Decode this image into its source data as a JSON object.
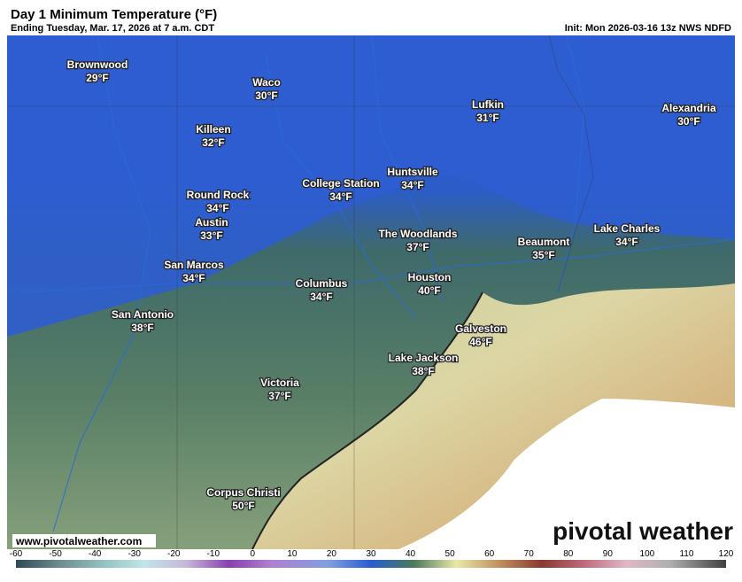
{
  "header": {
    "title": "Day 1 Minimum Temperature (°F)",
    "subtitle": "Ending Tuesday, Mar. 17, 2026 at 7 a.m. CDT",
    "init": "Init: Mon 2026-03-16 13z NWS NDFD"
  },
  "cities": [
    {
      "name": "Brownwood",
      "temp": "29°F"
    },
    {
      "name": "Waco",
      "temp": "30°F"
    },
    {
      "name": "Lufkin",
      "temp": "31°F"
    },
    {
      "name": "Alexandria",
      "temp": "30°F"
    },
    {
      "name": "Killeen",
      "temp": "32°F"
    },
    {
      "name": "Huntsville",
      "temp": "34°F"
    },
    {
      "name": "College Station",
      "temp": "34°F"
    },
    {
      "name": "Round Rock",
      "temp": "34°F"
    },
    {
      "name": "Austin",
      "temp": "33°F"
    },
    {
      "name": "The Woodlands",
      "temp": "37°F"
    },
    {
      "name": "Lake Charles",
      "temp": "34°F"
    },
    {
      "name": "Beaumont",
      "temp": "35°F"
    },
    {
      "name": "San Marcos",
      "temp": "34°F"
    },
    {
      "name": "Columbus",
      "temp": "34°F"
    },
    {
      "name": "Houston",
      "temp": "40°F"
    },
    {
      "name": "San Antonio",
      "temp": "38°F"
    },
    {
      "name": "Galveston",
      "temp": "46°F"
    },
    {
      "name": "Lake Jackson",
      "temp": "38°F"
    },
    {
      "name": "Victoria",
      "temp": "37°F"
    },
    {
      "name": "Corpus Christi",
      "temp": "50°F"
    }
  ],
  "watermark": "www.pivotalweather.com",
  "logo": "pivotal weather",
  "colorbar": {
    "ticks": [
      -60,
      -50,
      -40,
      -30,
      -20,
      -10,
      0,
      10,
      20,
      30,
      40,
      50,
      60,
      70,
      80,
      90,
      100,
      110,
      120
    ]
  }
}
